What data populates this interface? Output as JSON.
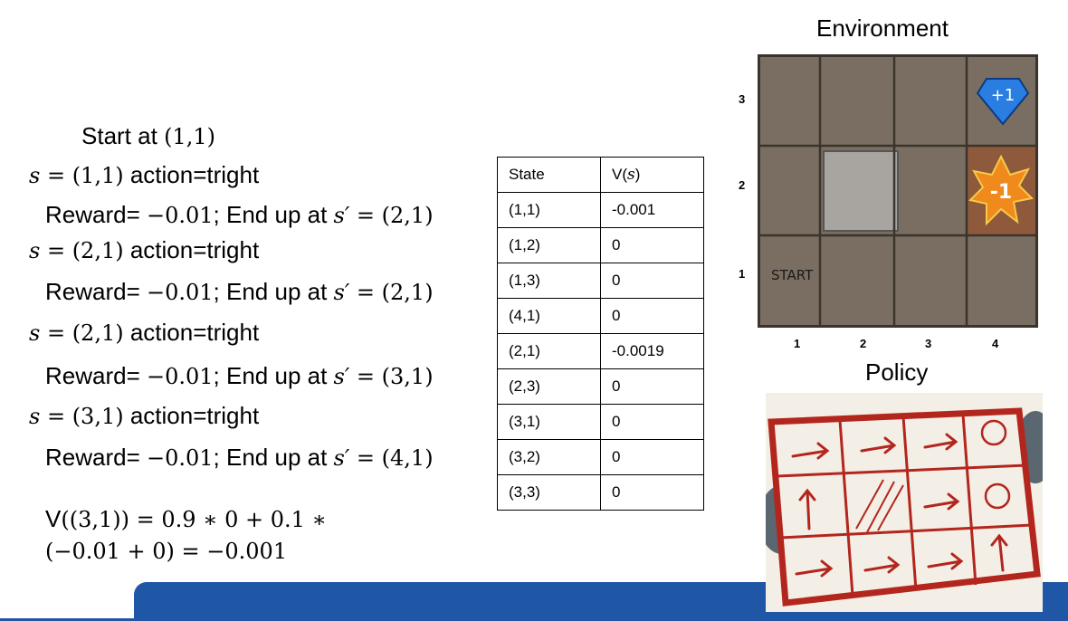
{
  "trace": {
    "start_label": "Start at",
    "start_coord": "(1,1)",
    "steps": [
      {
        "s_lhs": "s = ",
        "s_val": "(1,1)",
        "action": " action=tright",
        "reward_prefix": "Reward= ",
        "reward_val": "−0.01",
        "end_text": "; End up at ",
        "sp_lhs": "s′ = ",
        "sp_val": "(2,1)"
      },
      {
        "s_lhs": "s = ",
        "s_val": "(2,1)",
        "action": " action=tright",
        "reward_prefix": "Reward= ",
        "reward_val": "−0.01",
        "end_text": "; End up at ",
        "sp_lhs": "s′ = ",
        "sp_val": "(2,1)"
      },
      {
        "s_lhs": "s = ",
        "s_val": "(2,1)",
        "action": " action=tright",
        "reward_prefix": "Reward= ",
        "reward_val": "−0.01",
        "end_text": "; End up at ",
        "sp_lhs": "s′ = ",
        "sp_val": "(3,1)"
      },
      {
        "s_lhs": "s = ",
        "s_val": "(3,1)",
        "action": " action=tright",
        "reward_prefix": "Reward= ",
        "reward_val": "−0.01",
        "end_text": "; End up at ",
        "sp_lhs": "s′ = ",
        "sp_val": "(4,1)"
      }
    ],
    "formula_v": "V",
    "formula_line1_math": "((3,1)) = 0.9 ∗ 0 + 0.1 ∗",
    "formula_line2_math": "(−0.01 + 0) = −0.001"
  },
  "table": {
    "header_state": "State",
    "header_value_prefix": "V(",
    "header_value_var": "s",
    "header_value_suffix": ")",
    "rows": [
      {
        "state": "(1,1)",
        "value": "-0.001"
      },
      {
        "state": "(1,2)",
        "value": "0"
      },
      {
        "state": "(1,3)",
        "value": "0"
      },
      {
        "state": "(4,1)",
        "value": "0"
      },
      {
        "state": "(2,1)",
        "value": "-0.0019"
      },
      {
        "state": "(2,3)",
        "value": "0"
      },
      {
        "state": "(3,1)",
        "value": "0"
      },
      {
        "state": "(3,2)",
        "value": "0"
      },
      {
        "state": "(3,3)",
        "value": "0"
      }
    ]
  },
  "environment": {
    "title": "Environment",
    "start_label": "START",
    "plus_label": "+1",
    "minus_label": "-1",
    "row_labels": [
      "3",
      "2",
      "1"
    ],
    "col_labels": [
      "1",
      "2",
      "3",
      "4"
    ],
    "colors": {
      "floor": "#7a6e62",
      "wall": "#a8a4a0",
      "gem": "#2a7de1",
      "fire": "#f08a1c"
    }
  },
  "policy": {
    "title": "Policy",
    "colors": {
      "frame": "#b3261e",
      "paper": "#f3efe6"
    }
  },
  "footer": {
    "color": "#1f56a5"
  }
}
